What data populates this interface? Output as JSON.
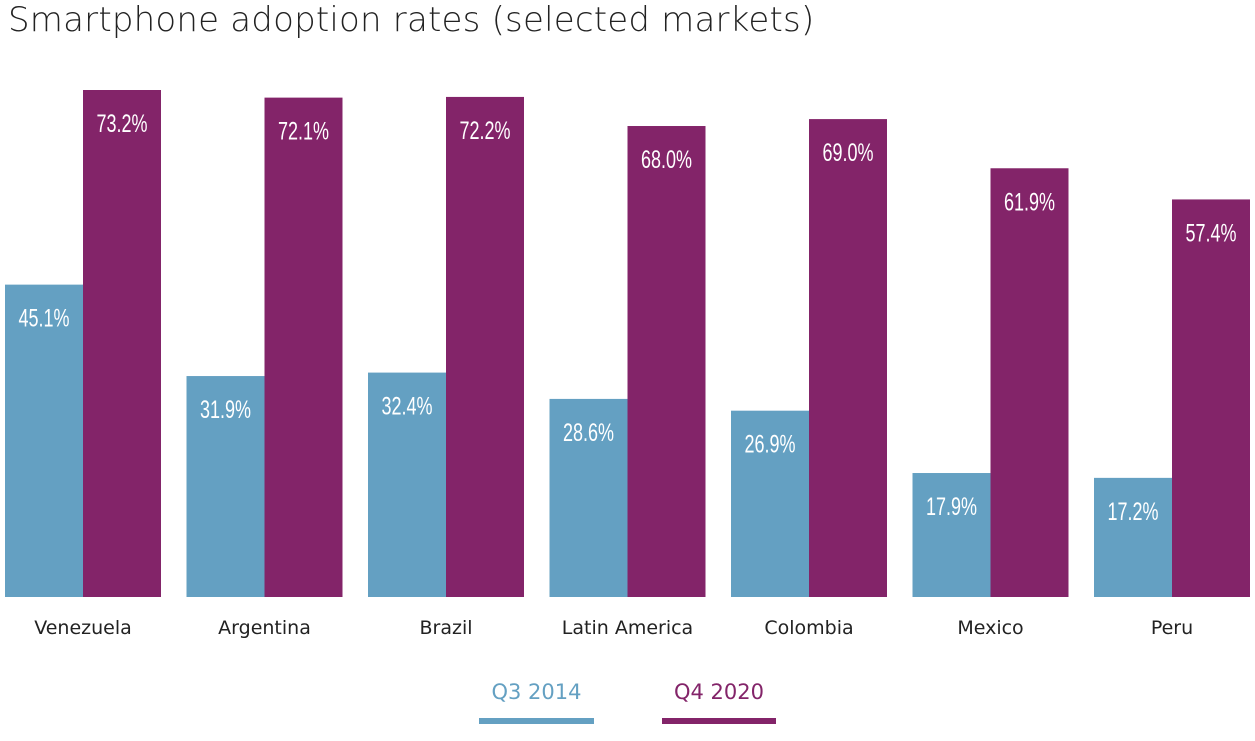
{
  "title": "Smartphone adoption rates (selected markets)",
  "chart_data": {
    "type": "bar",
    "title": "Smartphone adoption rates (selected markets)",
    "categories": [
      "Venezuela",
      "Argentina",
      "Brazil",
      "Latin America",
      "Colombia",
      "Mexico",
      "Peru"
    ],
    "series": [
      {
        "name": "Q3 2014",
        "color": "#64a0c2",
        "values": [
          45.1,
          31.9,
          32.4,
          28.6,
          26.9,
          17.9,
          17.2
        ],
        "labels": [
          "45.1%",
          "31.9%",
          "32.4%",
          "28.6%",
          "26.9%",
          "17.9%",
          "17.2%"
        ]
      },
      {
        "name": "Q4 2020",
        "color": "#832469",
        "values": [
          73.2,
          72.1,
          72.2,
          68.0,
          69.0,
          61.9,
          57.4
        ],
        "labels": [
          "73.2%",
          "72.1%",
          "72.2%",
          "68.0%",
          "69.0%",
          "61.9%",
          "57.4%"
        ]
      }
    ],
    "ylim": [
      0,
      73.2
    ],
    "grid": false,
    "legend_position": "bottom-center"
  }
}
